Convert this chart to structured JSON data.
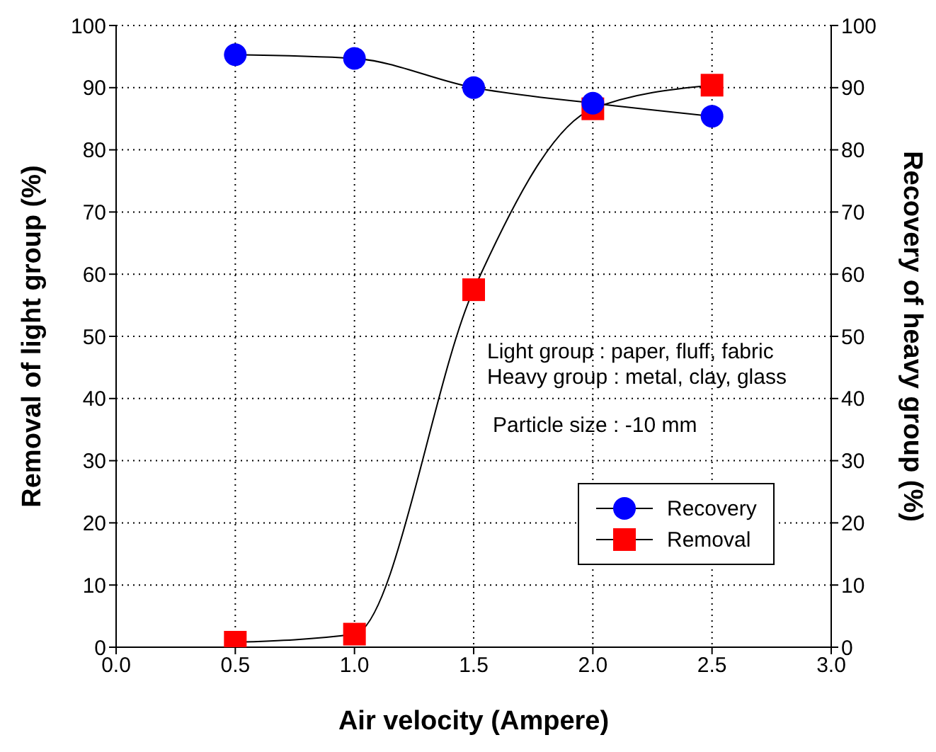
{
  "chart_data": {
    "type": "line",
    "xlabel": "Air velocity (Ampere)",
    "ylabel": "Removal of light group (%)",
    "y2label": "Recovery of heavy group (%)",
    "x": [
      0.5,
      1.0,
      1.5,
      2.0,
      2.5
    ],
    "series": [
      {
        "name": "Recovery",
        "color": "#0000ff",
        "marker": "circle",
        "axis": "y2",
        "values": [
          95.3,
          94.7,
          90.0,
          87.5,
          85.4
        ]
      },
      {
        "name": "Removal",
        "color": "#ff0000",
        "marker": "square",
        "values": [
          0.8,
          2.1,
          57.5,
          86.6,
          90.4
        ]
      }
    ],
    "xlim": [
      0,
      3
    ],
    "xticks": [
      {
        "value": 0,
        "label": "0.0"
      },
      {
        "value": 0.5,
        "label": "0.5"
      },
      {
        "value": 1,
        "label": "1.0"
      },
      {
        "value": 1.5,
        "label": "1.5"
      },
      {
        "value": 2,
        "label": "2.0"
      },
      {
        "value": 2.5,
        "label": "2.5"
      },
      {
        "value": 3,
        "label": "3.0"
      }
    ],
    "ylim": [
      0,
      100
    ],
    "yticks": [
      0,
      10,
      20,
      30,
      40,
      50,
      60,
      70,
      80,
      90,
      100
    ],
    "y2lim": [
      0,
      100
    ],
    "y2ticks": [
      0,
      10,
      20,
      30,
      40,
      50,
      60,
      70,
      80,
      90,
      100
    ],
    "grid": true,
    "legend": "bottom right",
    "line_style": "solid",
    "annotations": [
      "Light group : paper, fluff, fabric",
      "Heavy group : metal, clay, glass",
      "Particle size : -10 mm"
    ]
  }
}
